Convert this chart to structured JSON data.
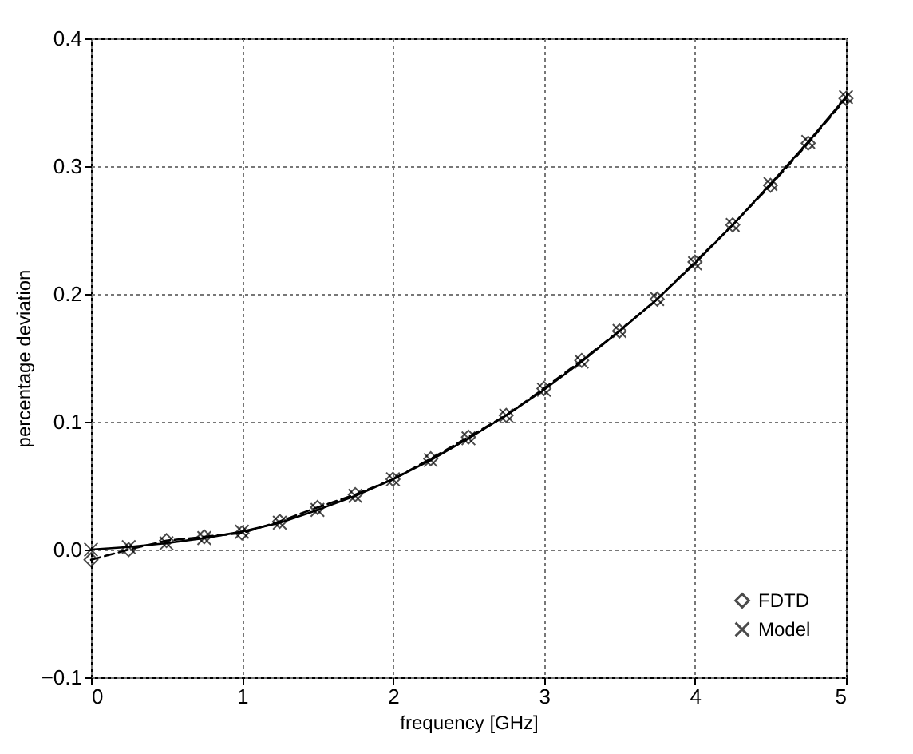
{
  "chart_data": {
    "type": "line",
    "xlabel": "frequency [GHz]",
    "ylabel": "percentage deviation",
    "x": [
      0,
      0.25,
      0.5,
      0.75,
      1,
      1.25,
      1.5,
      1.75,
      2,
      2.25,
      2.5,
      2.75,
      3,
      3.25,
      3.5,
      3.75,
      4,
      4.25,
      4.5,
      4.75,
      5
    ],
    "series": [
      {
        "name": "FDTD",
        "color": "#000000",
        "marker": "diamond",
        "line_style": "dashed",
        "values": [
          -0.008,
          0.0,
          0.007,
          0.01,
          0.013,
          0.022,
          0.033,
          0.043,
          0.055,
          0.071,
          0.088,
          0.105,
          0.126,
          0.148,
          0.171,
          0.196,
          0.225,
          0.254,
          0.285,
          0.318,
          0.353
        ]
      },
      {
        "name": "Model",
        "color": "#000000",
        "marker": "cross",
        "line_style": "solid",
        "values": [
          0.0,
          0.002,
          0.005,
          0.009,
          0.014,
          0.021,
          0.031,
          0.042,
          0.055,
          0.07,
          0.087,
          0.105,
          0.125,
          0.147,
          0.171,
          0.196,
          0.224,
          0.254,
          0.286,
          0.319,
          0.354
        ]
      }
    ],
    "xlim": [
      0,
      5
    ],
    "xticks": [
      0,
      1,
      2,
      3,
      4,
      5
    ],
    "ylim": [
      -0.1,
      0.4
    ],
    "yticks": [
      {
        "value": -0.1,
        "label": "−0.1"
      },
      {
        "value": 0,
        "label": "0.0"
      },
      {
        "value": 0.1,
        "label": "0.1"
      },
      {
        "value": 0.2,
        "label": "0.2"
      },
      {
        "value": 0.3,
        "label": "0.3"
      },
      {
        "value": 0.4,
        "label": "0.4"
      }
    ],
    "grid": true,
    "legend": "bottom right"
  }
}
